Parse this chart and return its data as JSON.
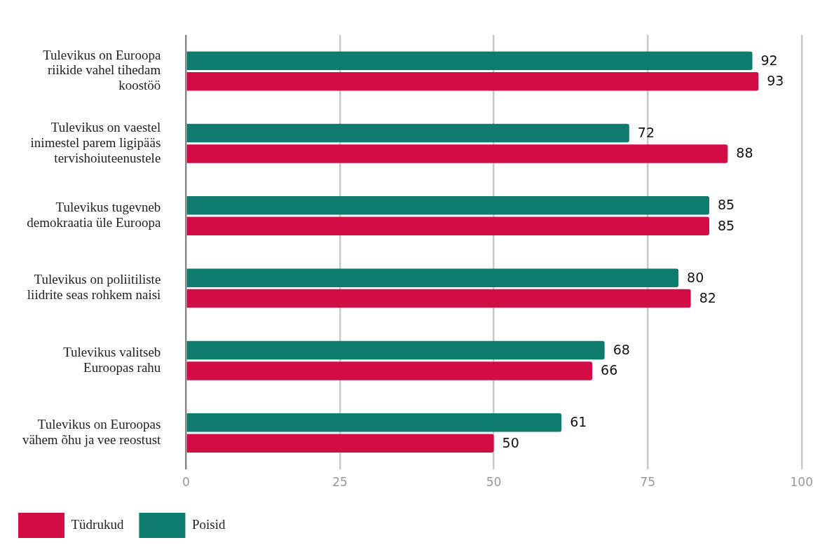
{
  "chart_data": {
    "type": "bar",
    "orientation": "horizontal",
    "categories": [
      "Tulevikus on Euroopa riikide vahel tihedam koostöö",
      "Tulevikus on vaestel inimestel parem ligipääs tervishoiuteenustele",
      "Tulevikus tugevneb demokraatia üle Euroopa",
      "Tulevikus on poliitiliste liidrite seas rohkem naisi",
      "Tulevikus valitseb Euroopas rahu",
      "Tulevikus on Euroopas vähem õhu ja vee reostust"
    ],
    "series": [
      {
        "name": "Poisid",
        "color": "#0f7b6f",
        "values": [
          92,
          72,
          85,
          80,
          68,
          61
        ]
      },
      {
        "name": "Tüdrukud",
        "color": "#d20c45",
        "values": [
          93,
          88,
          85,
          82,
          66,
          50
        ]
      }
    ],
    "xlim": [
      0,
      100
    ],
    "xticks": [
      0,
      25,
      50,
      75,
      100
    ],
    "grid": "x",
    "legend": "bottom",
    "data_labels": true
  }
}
